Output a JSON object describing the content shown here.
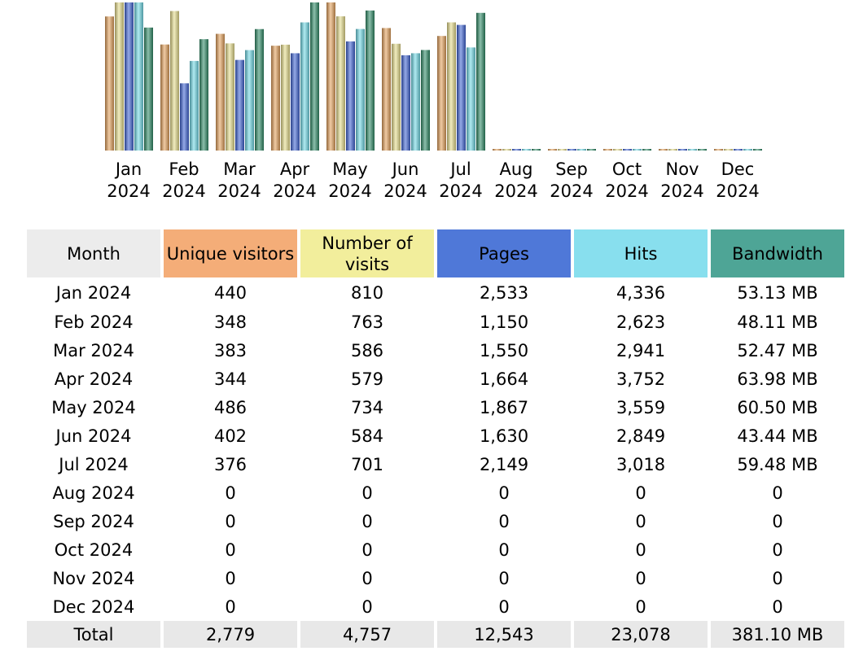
{
  "colors": {
    "unique_visitors": "#f4ad78",
    "visits": "#f2ee9c",
    "pages": "#4f78d8",
    "hits": "#88dfee",
    "bandwidth": "#4ea596",
    "month_header": "#ececec",
    "total_row": "#e8e8e8"
  },
  "chart_data": {
    "type": "bar",
    "categories": [
      [
        "Jan",
        "2024"
      ],
      [
        "Feb",
        "2024"
      ],
      [
        "Mar",
        "2024"
      ],
      [
        "Apr",
        "2024"
      ],
      [
        "May",
        "2024"
      ],
      [
        "Jun",
        "2024"
      ],
      [
        "Jul",
        "2024"
      ],
      [
        "Aug",
        "2024"
      ],
      [
        "Sep",
        "2024"
      ],
      [
        "Oct",
        "2024"
      ],
      [
        "Nov",
        "2024"
      ],
      [
        "Dec",
        "2024"
      ]
    ],
    "series": [
      {
        "name": "Unique visitors",
        "color": "#e3a05a",
        "values": [
          440,
          348,
          383,
          344,
          486,
          402,
          376,
          0,
          0,
          0,
          0,
          0
        ]
      },
      {
        "name": "Number of visits",
        "color": "#e6dc8a",
        "values": [
          810,
          763,
          586,
          579,
          734,
          584,
          701,
          0,
          0,
          0,
          0,
          0
        ]
      },
      {
        "name": "Pages",
        "color": "#3e62d4",
        "values": [
          2533,
          1150,
          1550,
          1664,
          1867,
          1630,
          2149,
          0,
          0,
          0,
          0,
          0
        ]
      },
      {
        "name": "Hits",
        "color": "#6fd9e6",
        "values": [
          4336,
          2623,
          2941,
          3752,
          3559,
          2849,
          3018,
          0,
          0,
          0,
          0,
          0
        ]
      },
      {
        "name": "Bandwidth",
        "color": "#2e8a66",
        "values": [
          53.13,
          48.11,
          52.47,
          63.98,
          60.5,
          43.44,
          59.48,
          0,
          0,
          0,
          0,
          0
        ],
        "unit": "MB"
      }
    ],
    "axes": "hidden",
    "grid": false
  },
  "table": {
    "headers": {
      "month": "Month",
      "unique_visitors": "Unique visitors",
      "visits": "Number of visits",
      "pages": "Pages",
      "hits": "Hits",
      "bandwidth": "Bandwidth"
    },
    "rows": [
      {
        "month": "Jan 2024",
        "unique_visitors": "440",
        "visits": "810",
        "pages": "2,533",
        "hits": "4,336",
        "bandwidth": "53.13 MB"
      },
      {
        "month": "Feb 2024",
        "unique_visitors": "348",
        "visits": "763",
        "pages": "1,150",
        "hits": "2,623",
        "bandwidth": "48.11 MB"
      },
      {
        "month": "Mar 2024",
        "unique_visitors": "383",
        "visits": "586",
        "pages": "1,550",
        "hits": "2,941",
        "bandwidth": "52.47 MB"
      },
      {
        "month": "Apr 2024",
        "unique_visitors": "344",
        "visits": "579",
        "pages": "1,664",
        "hits": "3,752",
        "bandwidth": "63.98 MB"
      },
      {
        "month": "May 2024",
        "unique_visitors": "486",
        "visits": "734",
        "pages": "1,867",
        "hits": "3,559",
        "bandwidth": "60.50 MB"
      },
      {
        "month": "Jun 2024",
        "unique_visitors": "402",
        "visits": "584",
        "pages": "1,630",
        "hits": "2,849",
        "bandwidth": "43.44 MB"
      },
      {
        "month": "Jul 2024",
        "unique_visitors": "376",
        "visits": "701",
        "pages": "2,149",
        "hits": "3,018",
        "bandwidth": "59.48 MB"
      },
      {
        "month": "Aug 2024",
        "unique_visitors": "0",
        "visits": "0",
        "pages": "0",
        "hits": "0",
        "bandwidth": "0"
      },
      {
        "month": "Sep 2024",
        "unique_visitors": "0",
        "visits": "0",
        "pages": "0",
        "hits": "0",
        "bandwidth": "0"
      },
      {
        "month": "Oct 2024",
        "unique_visitors": "0",
        "visits": "0",
        "pages": "0",
        "hits": "0",
        "bandwidth": "0"
      },
      {
        "month": "Nov 2024",
        "unique_visitors": "0",
        "visits": "0",
        "pages": "0",
        "hits": "0",
        "bandwidth": "0"
      },
      {
        "month": "Dec 2024",
        "unique_visitors": "0",
        "visits": "0",
        "pages": "0",
        "hits": "0",
        "bandwidth": "0"
      }
    ],
    "total": {
      "label": "Total",
      "unique_visitors": "2,779",
      "visits": "4,757",
      "pages": "12,543",
      "hits": "23,078",
      "bandwidth": "381.10 MB"
    }
  }
}
